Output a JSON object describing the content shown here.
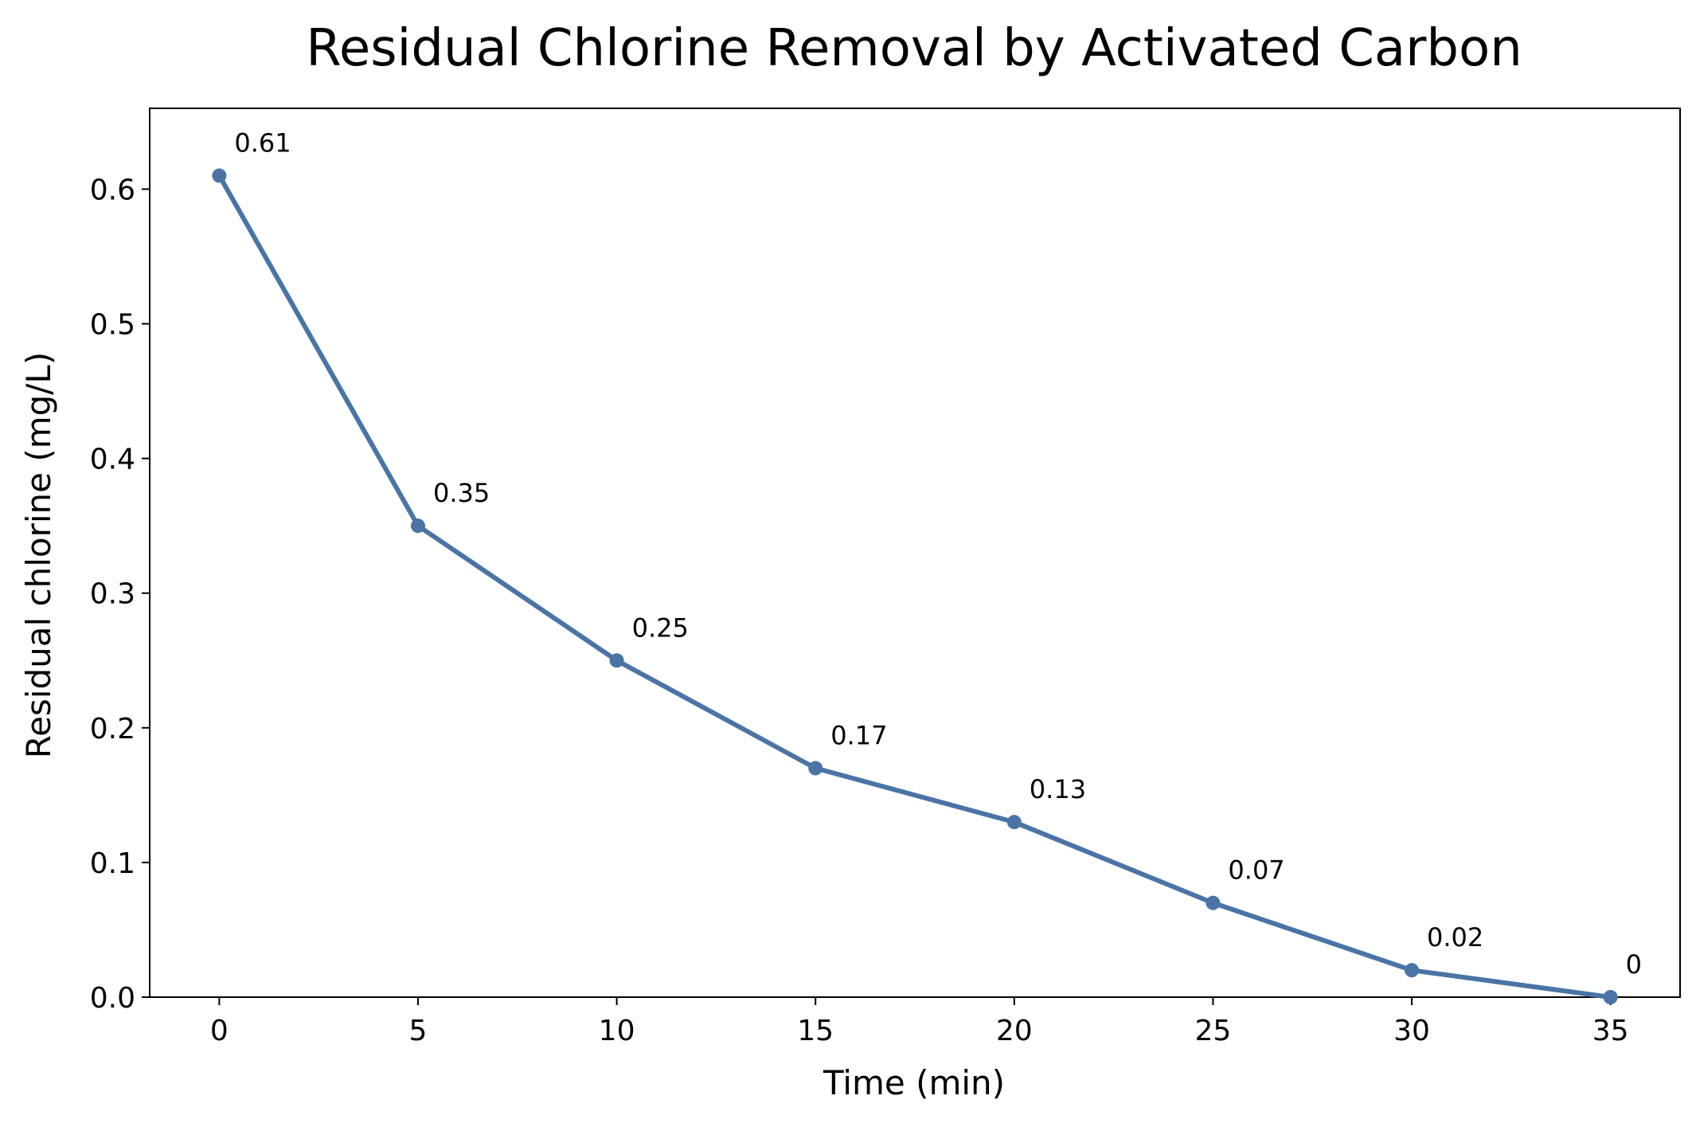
{
  "chart_data": {
    "type": "line",
    "title": "Residual Chlorine Removal by Activated Carbon",
    "xlabel": "Time (min)",
    "ylabel": "Residual chlorine (mg/L)",
    "x": [
      0,
      5,
      10,
      15,
      20,
      25,
      30,
      35
    ],
    "series": [
      {
        "values": [
          0.61,
          0.35,
          0.25,
          0.17,
          0.13,
          0.07,
          0.02,
          0
        ],
        "color": "#4a74a6"
      }
    ],
    "data_labels": [
      "0.61",
      "0.35",
      "0.25",
      "0.17",
      "0.13",
      "0.07",
      "0.02",
      "0"
    ],
    "x_ticks": [
      "0",
      "5",
      "10",
      "15",
      "20",
      "25",
      "30",
      "35"
    ],
    "y_ticks": [
      "0.0",
      "0.1",
      "0.2",
      "0.3",
      "0.4",
      "0.5",
      "0.6"
    ],
    "xlim": [
      -1.75,
      36.75
    ],
    "ylim": [
      0,
      0.66
    ],
    "grid": false,
    "legend": false
  }
}
